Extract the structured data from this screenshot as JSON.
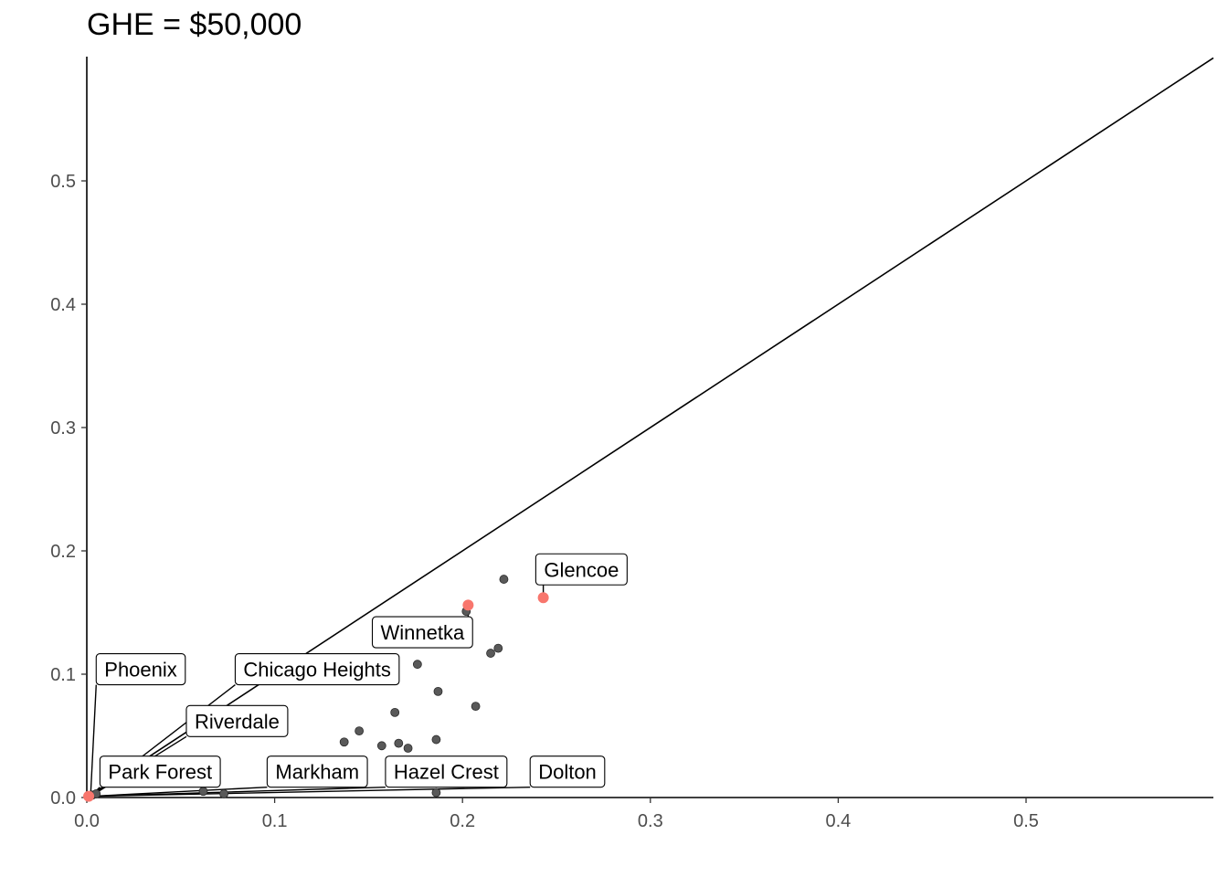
{
  "chart_data": {
    "type": "scatter",
    "title": "GHE = $50,000",
    "xlabel": "",
    "ylabel": "",
    "xlim": [
      0,
      0.6
    ],
    "ylim": [
      0,
      0.6
    ],
    "x_ticks": [
      "0.0",
      "0.1",
      "0.2",
      "0.3",
      "0.4",
      "0.5"
    ],
    "y_ticks": [
      "0.0",
      "0.1",
      "0.2",
      "0.3",
      "0.4",
      "0.5"
    ],
    "grid": false,
    "reference_line": {
      "type": "identity",
      "slope": 1,
      "intercept": 0
    },
    "colors": {
      "default_point": "#595959",
      "highlight_point": "#f8766d"
    },
    "points": [
      {
        "x": 0.222,
        "y": 0.177
      },
      {
        "x": 0.202,
        "y": 0.151
      },
      {
        "x": 0.219,
        "y": 0.121
      },
      {
        "x": 0.215,
        "y": 0.117
      },
      {
        "x": 0.176,
        "y": 0.108
      },
      {
        "x": 0.187,
        "y": 0.086
      },
      {
        "x": 0.207,
        "y": 0.074
      },
      {
        "x": 0.164,
        "y": 0.069
      },
      {
        "x": 0.145,
        "y": 0.054
      },
      {
        "x": 0.137,
        "y": 0.045
      },
      {
        "x": 0.166,
        "y": 0.044
      },
      {
        "x": 0.157,
        "y": 0.042
      },
      {
        "x": 0.171,
        "y": 0.04
      },
      {
        "x": 0.186,
        "y": 0.047
      },
      {
        "x": 0.186,
        "y": 0.004
      },
      {
        "x": 0.062,
        "y": 0.005
      },
      {
        "x": 0.073,
        "y": 0.003
      },
      {
        "x": 0.003,
        "y": 0.002
      },
      {
        "x": 0.005,
        "y": 0.003
      },
      {
        "x": 0.203,
        "y": 0.156,
        "highlight": true
      },
      {
        "x": 0.243,
        "y": 0.162,
        "highlight": true
      },
      {
        "x": 0.001,
        "y": 0.001,
        "highlight": true
      }
    ],
    "labels": [
      {
        "text": "Glencoe",
        "x": 0.243,
        "y": 0.162,
        "bx": 0.239,
        "by": 0.185
      },
      {
        "text": "Winnetka",
        "x": 0.203,
        "y": 0.156,
        "bx": 0.152,
        "by": 0.134
      },
      {
        "text": "Phoenix",
        "x": 0.002,
        "y": 0.001,
        "bx": 0.005,
        "by": 0.104
      },
      {
        "text": "Chicago Heights",
        "x": 0.002,
        "y": 0.001,
        "bx": 0.079,
        "by": 0.104
      },
      {
        "text": "Riverdale",
        "x": 0.002,
        "y": 0.001,
        "bx": 0.053,
        "by": 0.062
      },
      {
        "text": "Park Forest",
        "x": 0.002,
        "y": 0.001,
        "bx": 0.007,
        "by": 0.021
      },
      {
        "text": "Markham",
        "x": 0.002,
        "y": 0.001,
        "bx": 0.096,
        "by": 0.021
      },
      {
        "text": "Hazel Crest",
        "x": 0.002,
        "y": 0.001,
        "bx": 0.159,
        "by": 0.021
      },
      {
        "text": "Dolton",
        "x": 0.002,
        "y": 0.001,
        "bx": 0.236,
        "by": 0.021
      }
    ]
  }
}
